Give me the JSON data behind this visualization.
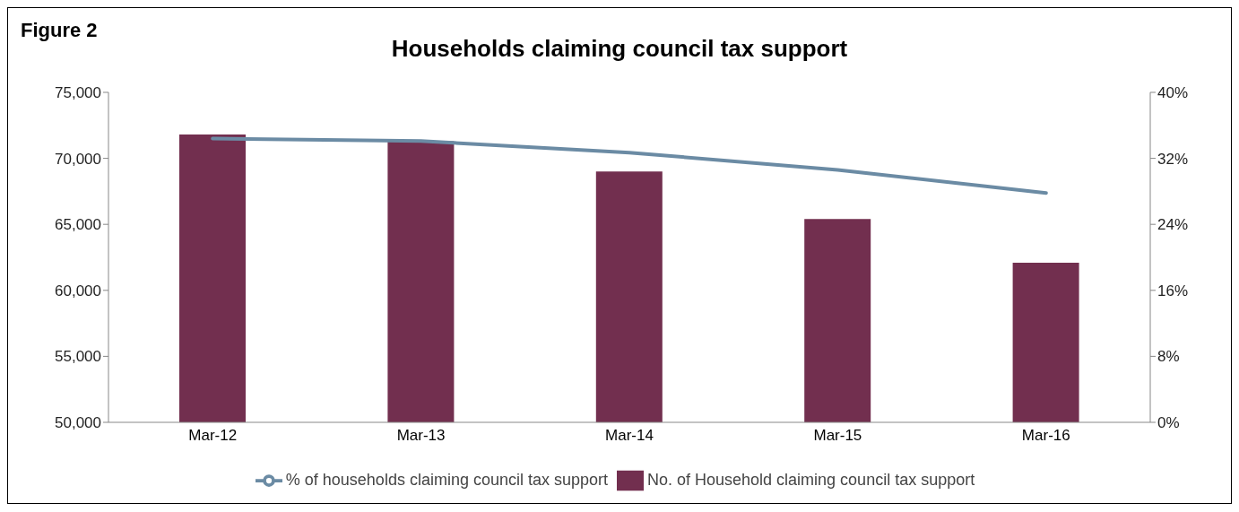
{
  "chart_data": {
    "type": "bar",
    "title": "Households claiming council tax support",
    "annotations": [
      "Figure 2"
    ],
    "categories": [
      "Mar-12",
      "Mar-13",
      "Mar-14",
      "Mar-15",
      "Mar-16"
    ],
    "series": [
      {
        "name": "No. of Household claiming council tax support",
        "color": "#722f4f",
        "values": [
          71800,
          71300,
          69000,
          65400,
          62100
        ]
      },
      {
        "name": "% of households claiming council tax support",
        "type": "line",
        "axis": "y2",
        "color": "#6b8ba4",
        "values": [
          34.4,
          34.1,
          32.7,
          30.6,
          27.8
        ]
      }
    ],
    "ylim": [
      50000,
      75000
    ],
    "yticks": [
      {
        "value": 50000,
        "label": "50,000"
      },
      {
        "value": 55000,
        "label": "55,000"
      },
      {
        "value": 60000,
        "label": "60,000"
      },
      {
        "value": 65000,
        "label": "65,000"
      },
      {
        "value": 70000,
        "label": "70,000"
      },
      {
        "value": 75000,
        "label": "75,000"
      }
    ],
    "y2lim": [
      0,
      40
    ],
    "y2ticks": [
      {
        "value": 0,
        "label": "0%"
      },
      {
        "value": 8,
        "label": "8%"
      },
      {
        "value": 16,
        "label": "16%"
      },
      {
        "value": 24,
        "label": "24%"
      },
      {
        "value": 32,
        "label": "32%"
      },
      {
        "value": 40,
        "label": "40%"
      }
    ],
    "grid": false,
    "legend": "bottom",
    "marker": "none"
  }
}
